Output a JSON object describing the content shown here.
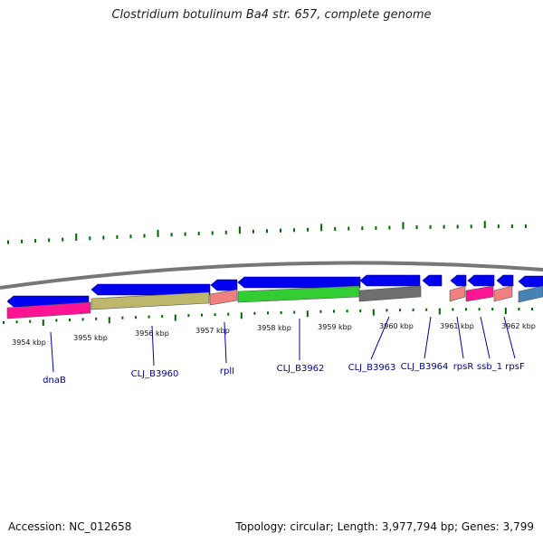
{
  "title": "Clostridium botulinum Ba4 str. 657, complete genome",
  "accession": "Accession: NC_012658",
  "summary": "Topology: circular; Length: 3,977,794 bp; Genes: 3,799",
  "scale_labels": [
    "3954 kbp",
    "3955 kbp",
    "3956 kbp",
    "3957 kbp",
    "3958 kbp",
    "3959 kbp",
    "3960 kbp",
    "3961 kbp",
    "3962 kbp"
  ],
  "gene_labels": [
    "dnaB",
    "CLJ_B3960",
    "rplI",
    "CLJ_B3962",
    "CLJ_B3963",
    "CLJ_B3964",
    "rpsR",
    "ssb_1",
    "rpsF"
  ],
  "colors": {
    "cds_arrow": "#0000ee",
    "label": "#00009a",
    "tick": "#006600",
    "backbone": "#888888",
    "segments": [
      "#ff1493",
      "#bdb76b",
      "#f08080",
      "#32cd32",
      "#6e6e6e",
      "#f08080",
      "#ff1493",
      "#f08080",
      "#4682b4"
    ]
  }
}
